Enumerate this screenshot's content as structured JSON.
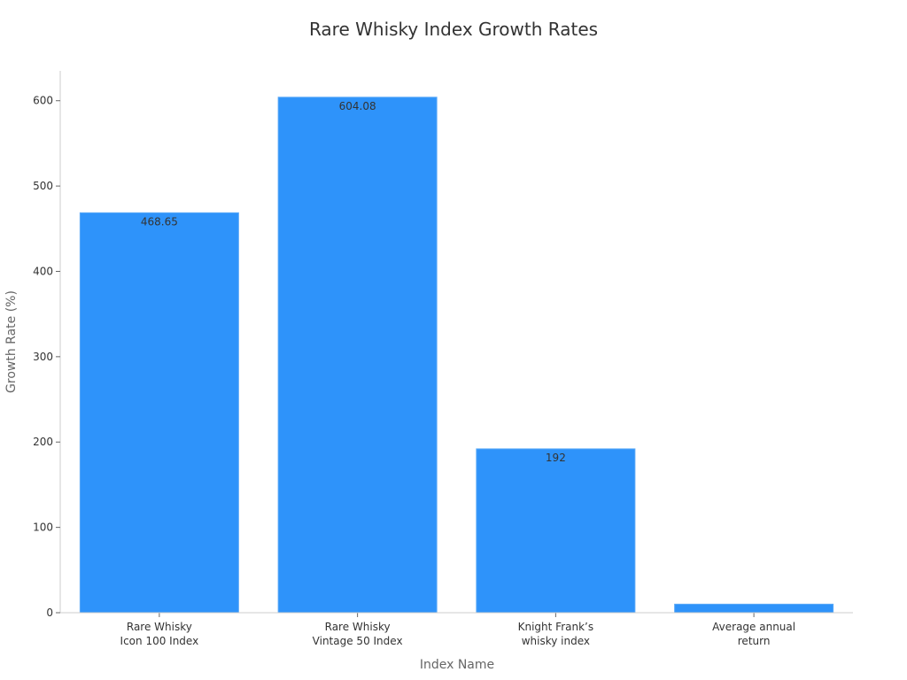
{
  "chart_data": {
    "type": "bar",
    "title": "Rare Whisky Index Growth Rates",
    "xlabel": "Index Name",
    "ylabel": "Growth Rate (%)",
    "categories": [
      [
        "Rare Whisky",
        "Icon 100 Index"
      ],
      [
        "Rare Whisky",
        "Vintage 50 Index"
      ],
      [
        "Knight Frank’s",
        "whisky index"
      ],
      [
        "Average annual",
        "return"
      ]
    ],
    "values": [
      468.65,
      604.08,
      192,
      10
    ],
    "data_labels": [
      "468.65",
      "604.08",
      "192",
      ""
    ],
    "ylim": [
      0,
      635
    ],
    "yticks": [
      0,
      100,
      200,
      300,
      400,
      500,
      600
    ],
    "grid": false,
    "legend": "none",
    "colors": {
      "bar": "#2e93fa",
      "axis": "#cccccc",
      "tick_text": "#333333",
      "axis_title": "#666666"
    }
  }
}
